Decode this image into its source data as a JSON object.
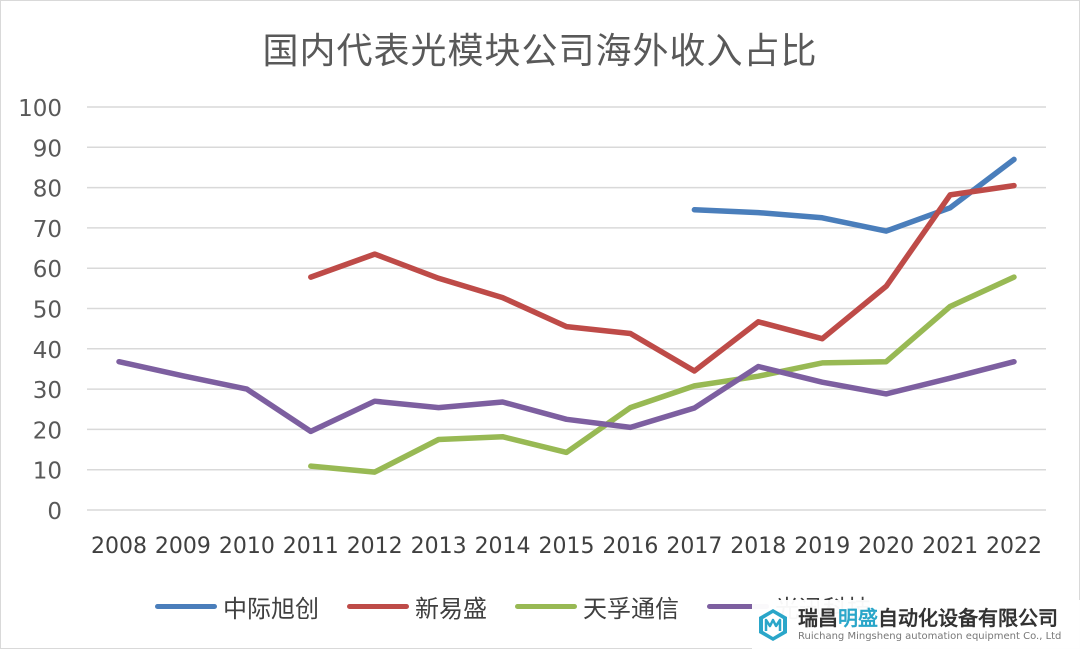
{
  "chart_data": {
    "type": "line",
    "title": "国内代表光模块公司海外收入占比",
    "xlabel": "",
    "ylabel": "",
    "ylim": [
      0,
      100
    ],
    "yticks": [
      0,
      10,
      20,
      30,
      40,
      50,
      60,
      70,
      80,
      90,
      100
    ],
    "grid": true,
    "legend_position": "bottom",
    "categories": [
      "2008",
      "2009",
      "2010",
      "2011",
      "2012",
      "2013",
      "2014",
      "2015",
      "2016",
      "2017",
      "2018",
      "2019",
      "2020",
      "2021",
      "2022"
    ],
    "series": [
      {
        "name": "中际旭创",
        "color": "#4a7ebb",
        "values": [
          null,
          null,
          null,
          null,
          null,
          null,
          null,
          null,
          null,
          74.5,
          73.8,
          72.5,
          69.2,
          75,
          87
        ]
      },
      {
        "name": "新易盛",
        "color": "#be4b48",
        "values": [
          null,
          null,
          null,
          57.8,
          63.5,
          57.5,
          52.7,
          45.5,
          43.8,
          34.5,
          46.7,
          42.5,
          55.5,
          78.2,
          80.5
        ]
      },
      {
        "name": "天孚通信",
        "color": "#98b954",
        "values": [
          null,
          null,
          null,
          10.9,
          9.4,
          17.5,
          18.2,
          14.3,
          25.4,
          30.8,
          33.2,
          36.5,
          36.8,
          50.5,
          57.8
        ]
      },
      {
        "name": "光迅科技",
        "color": "#7d5fa0",
        "values": [
          36.8,
          33.3,
          30,
          19.5,
          27,
          25.4,
          26.8,
          22.5,
          20.5,
          25.3,
          35.6,
          31.7,
          28.8,
          32.7,
          36.8
        ]
      }
    ]
  },
  "watermark": {
    "cn_prefix": "瑞昌",
    "cn_highlight": "明盛",
    "cn_suffix": "自动化设备有限公司",
    "en": "Ruichang Mingsheng automation equipment Co., Ltd"
  }
}
